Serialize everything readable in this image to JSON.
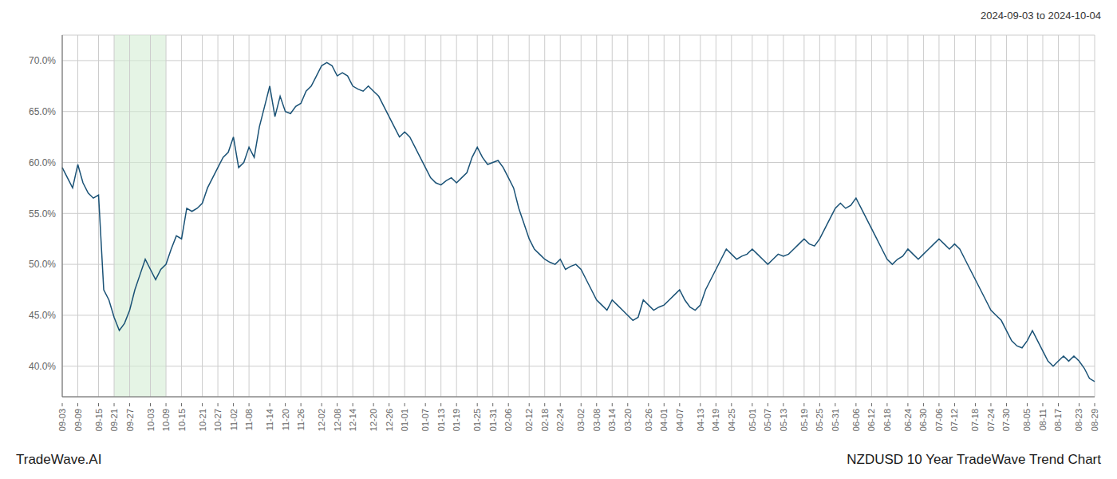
{
  "chart_data": {
    "type": "line",
    "title": "NZDUSD 10 Year TradeWave Trend Chart",
    "subtitle": "2024-09-03 to 2024-10-04",
    "annotations": [
      "TradeWave.AI"
    ],
    "color": "#1a5276",
    "grid": true,
    "ylim": [
      37.0,
      72.5
    ],
    "yticks": [
      {
        "value": 40.0,
        "label": "40.0%"
      },
      {
        "value": 45.0,
        "label": "45.0%"
      },
      {
        "value": 50.0,
        "label": "50.0%"
      },
      {
        "value": 55.0,
        "label": "55.0%"
      },
      {
        "value": 60.0,
        "label": "60.0%"
      },
      {
        "value": 65.0,
        "label": "65.0%"
      },
      {
        "value": 70.0,
        "label": "70.0%"
      }
    ],
    "highlight": {
      "from": "09-21",
      "to": "10-09",
      "color": "#d4ecd4"
    },
    "categories": [
      "09-03",
      null,
      null,
      "09-09",
      null,
      null,
      null,
      "09-15",
      null,
      null,
      "09-21",
      null,
      null,
      "09-27",
      null,
      null,
      null,
      "10-03",
      null,
      null,
      "10-09",
      null,
      null,
      "10-15",
      null,
      null,
      null,
      "10-21",
      null,
      null,
      "10-27",
      null,
      null,
      "11-02",
      null,
      null,
      "11-08",
      null,
      null,
      null,
      "11-14",
      null,
      null,
      "11-20",
      null,
      null,
      "11-26",
      null,
      null,
      null,
      "12-02",
      null,
      null,
      "12-08",
      null,
      null,
      "12-14",
      null,
      null,
      null,
      "12-20",
      null,
      null,
      "12-26",
      null,
      null,
      "01-01",
      null,
      null,
      null,
      "01-07",
      null,
      null,
      "01-13",
      null,
      null,
      "01-19",
      null,
      null,
      null,
      "01-25",
      null,
      null,
      "01-31",
      null,
      null,
      "02-06",
      null,
      null,
      null,
      "02-12",
      null,
      null,
      "02-18",
      null,
      null,
      "02-24",
      null,
      null,
      null,
      "03-02",
      null,
      null,
      "03-08",
      null,
      null,
      "03-14",
      null,
      null,
      "03-20",
      null,
      null,
      null,
      "03-26",
      null,
      null,
      "04-01",
      null,
      null,
      "04-07",
      null,
      null,
      null,
      "04-13",
      null,
      null,
      "04-19",
      null,
      null,
      "04-25",
      null,
      null,
      null,
      "05-01",
      null,
      null,
      "05-07",
      null,
      null,
      "05-13",
      null,
      null,
      null,
      "05-19",
      null,
      null,
      "05-25",
      null,
      null,
      "05-31",
      null,
      null,
      null,
      "06-06",
      null,
      null,
      "06-12",
      null,
      null,
      "06-18",
      null,
      null,
      null,
      "06-24",
      null,
      null,
      "06-30",
      null,
      null,
      "07-06",
      null,
      null,
      "07-12",
      null,
      null,
      null,
      "07-18",
      null,
      null,
      "07-24",
      null,
      null,
      "07-30",
      null,
      null,
      null,
      "08-05",
      null,
      null,
      "08-11",
      null,
      null,
      "08-17",
      null,
      null,
      null,
      "08-23",
      null,
      null,
      "08-29"
    ],
    "values": [
      59.5,
      58.5,
      57.5,
      59.8,
      58.0,
      57.0,
      56.5,
      56.8,
      47.5,
      46.5,
      44.8,
      43.5,
      44.2,
      45.5,
      47.5,
      49.0,
      50.5,
      49.5,
      48.5,
      49.5,
      50.0,
      51.5,
      52.8,
      52.5,
      55.5,
      55.2,
      55.5,
      56.0,
      57.5,
      58.5,
      59.5,
      60.5,
      61.0,
      62.5,
      59.5,
      60.0,
      61.5,
      60.5,
      63.5,
      65.5,
      67.5,
      64.5,
      66.5,
      65.0,
      64.8,
      65.5,
      65.8,
      67.0,
      67.5,
      68.5,
      69.5,
      69.8,
      69.5,
      68.5,
      68.8,
      68.5,
      67.5,
      67.2,
      67.0,
      67.5,
      67.0,
      66.5,
      65.5,
      64.5,
      63.5,
      62.5,
      63.0,
      62.5,
      61.5,
      60.5,
      59.5,
      58.5,
      58.0,
      57.8,
      58.2,
      58.5,
      58.0,
      58.5,
      59.0,
      60.5,
      61.5,
      60.5,
      59.8,
      60.0,
      60.2,
      59.5,
      58.5,
      57.5,
      55.5,
      54.0,
      52.5,
      51.5,
      51.0,
      50.5,
      50.2,
      50.0,
      50.5,
      49.5,
      49.8,
      50.0,
      49.5,
      48.5,
      47.5,
      46.5,
      46.0,
      45.5,
      46.5,
      46.0,
      45.5,
      45.0,
      44.5,
      44.8,
      46.5,
      46.0,
      45.5,
      45.8,
      46.0,
      46.5,
      47.0,
      47.5,
      46.5,
      45.8,
      45.5,
      46.0,
      47.5,
      48.5,
      49.5,
      50.5,
      51.5,
      51.0,
      50.5,
      50.8,
      51.0,
      51.5,
      51.0,
      50.5,
      50.0,
      50.5,
      51.0,
      50.8,
      51.0,
      51.5,
      52.0,
      52.5,
      52.0,
      51.8,
      52.5,
      53.5,
      54.5,
      55.5,
      56.0,
      55.5,
      55.8,
      56.5,
      55.5,
      54.5,
      53.5,
      52.5,
      51.5,
      50.5,
      50.0,
      50.5,
      50.8,
      51.5,
      51.0,
      50.5,
      51.0,
      51.5,
      52.0,
      52.5,
      52.0,
      51.5,
      52.0,
      51.5,
      50.5,
      49.5,
      48.5,
      47.5,
      46.5,
      45.5,
      45.0,
      44.5,
      43.5,
      42.5,
      42.0,
      41.8,
      42.5,
      43.5,
      42.5,
      41.5,
      40.5,
      40.0,
      40.5,
      41.0,
      40.5,
      41.0,
      40.5,
      39.8,
      38.8,
      38.5
    ]
  }
}
